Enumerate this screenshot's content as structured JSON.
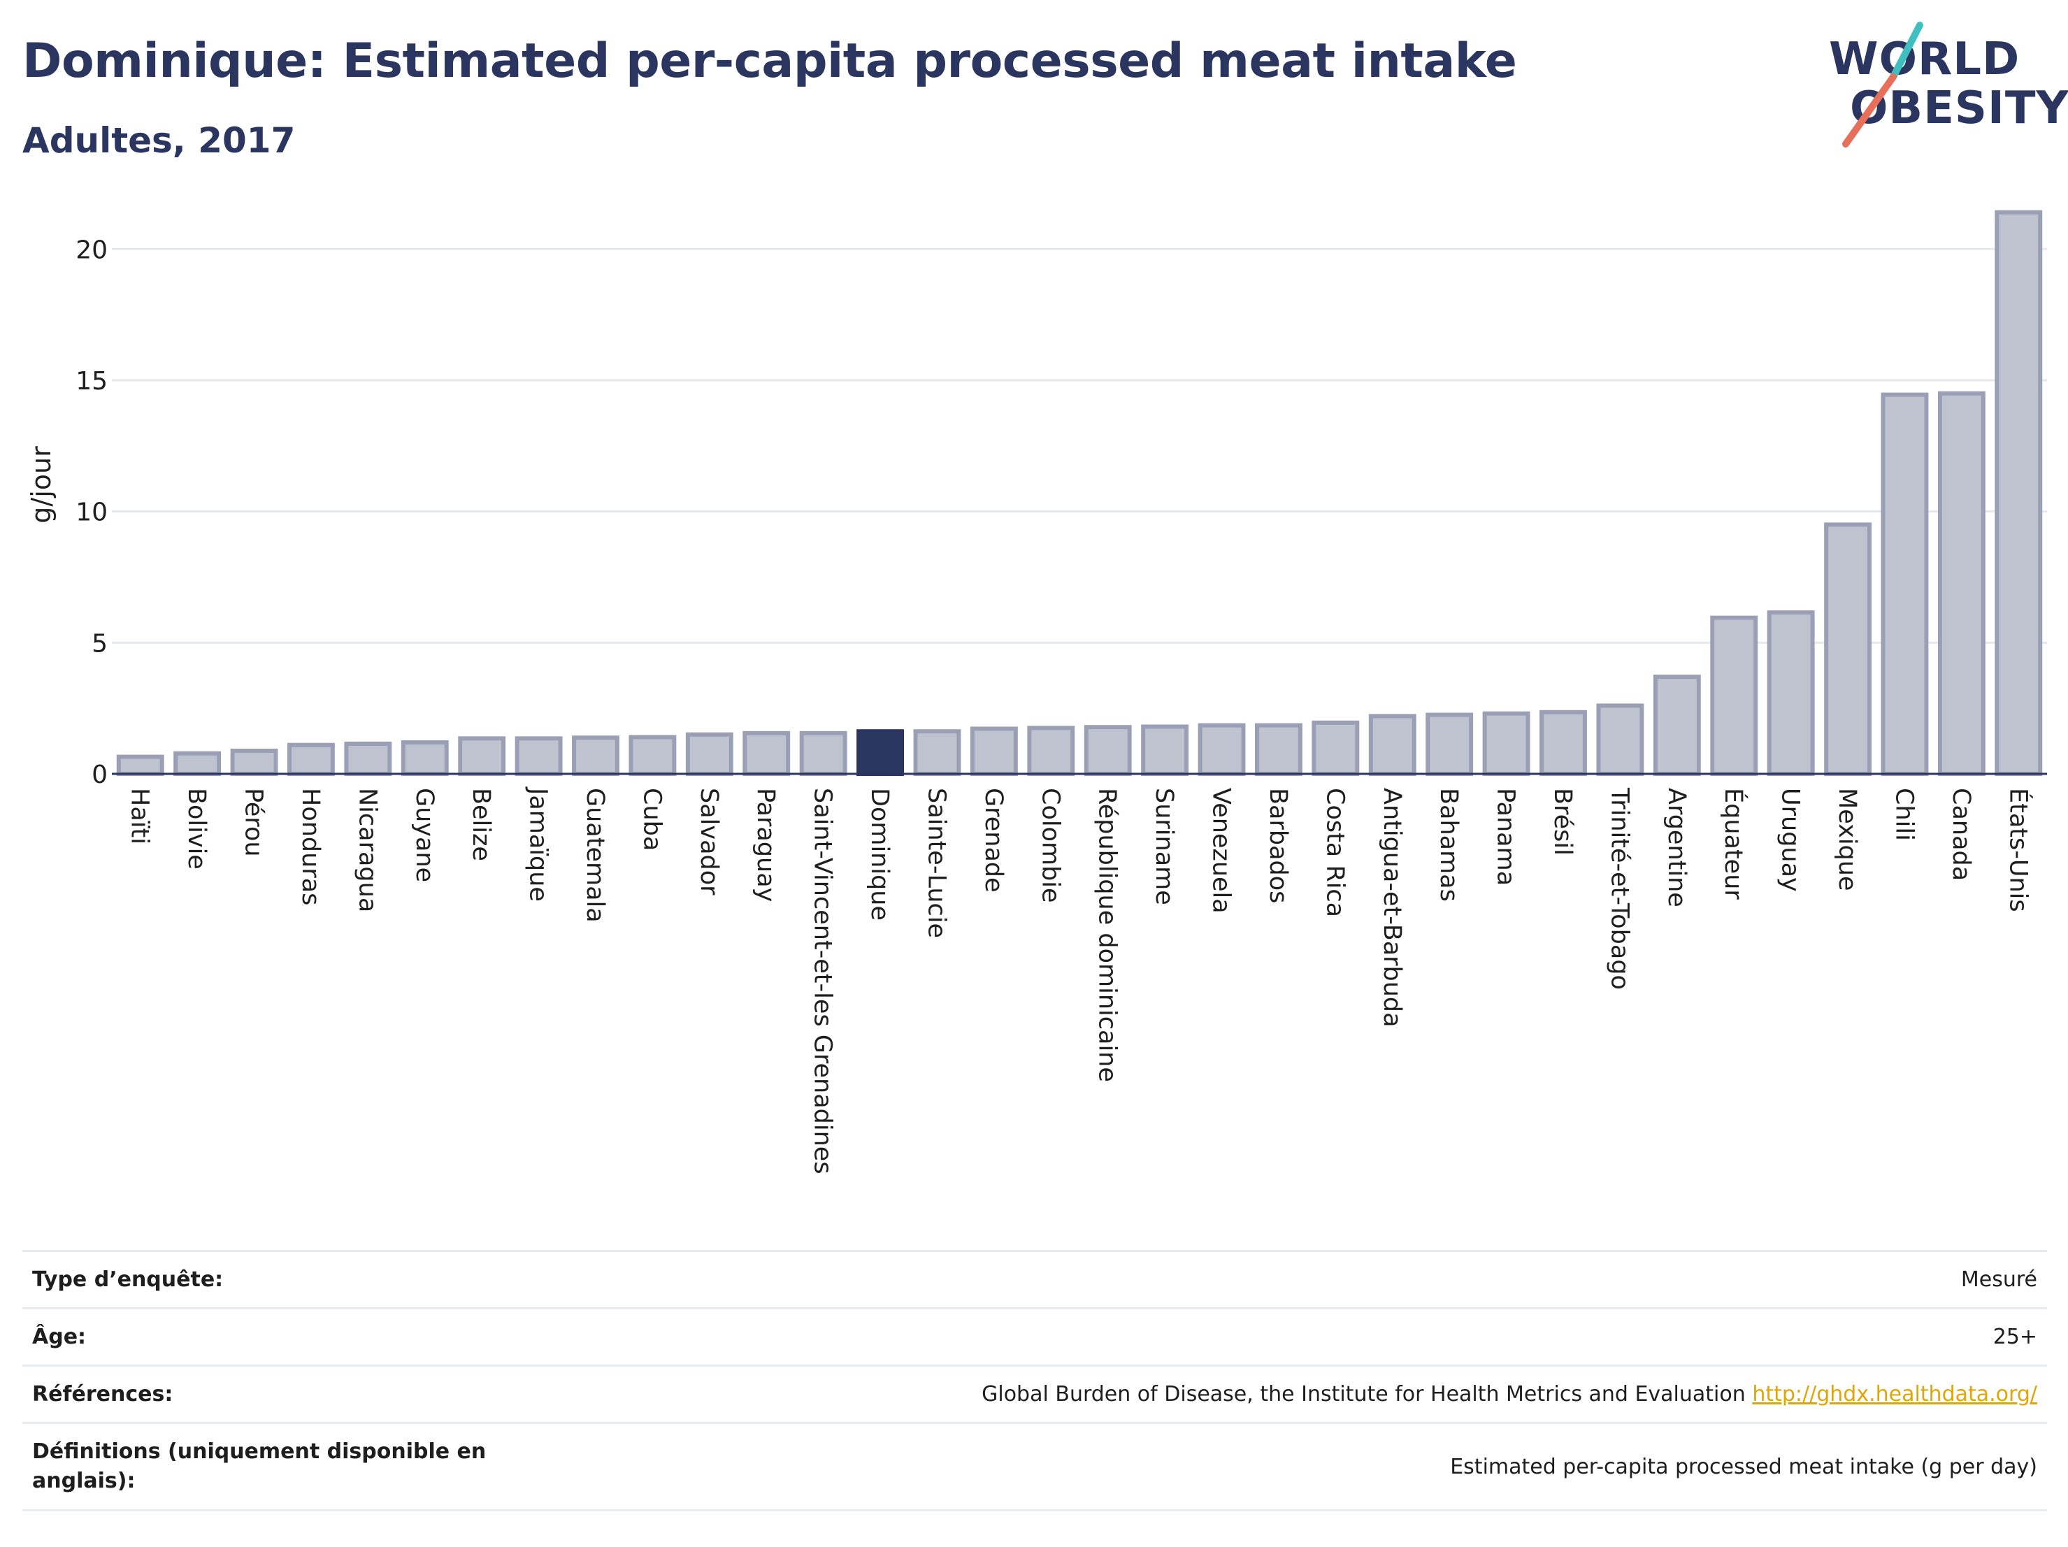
{
  "header": {
    "title": "Dominique: Estimated per-capita processed meat intake",
    "subtitle": "Adultes, 2017"
  },
  "logo": {
    "line1": "WORLD",
    "line2": "OBESITY",
    "accent_teal": "#3fbfbf",
    "accent_coral": "#e8705a"
  },
  "colors": {
    "bar": "#bfc3d0",
    "bar_border": "#9a9fb5",
    "highlight": "#2a3560",
    "grid": "#e5e8ec"
  },
  "chart_data": {
    "type": "bar",
    "ylabel": "g/jour",
    "ylim": [
      0,
      21.5
    ],
    "yticks": [
      0,
      5,
      10,
      15,
      20
    ],
    "highlight": "Dominique",
    "categories": [
      "Haïti",
      "Bolivie",
      "Pérou",
      "Honduras",
      "Nicaragua",
      "Guyane",
      "Belize",
      "Jamaïque",
      "Guatemala",
      "Cuba",
      "Salvador",
      "Paraguay",
      "Saint-Vincent-et-les Grenadines",
      "Dominique",
      "Sainte-Lucie",
      "Grenade",
      "Colombie",
      "République dominicaine",
      "Suriname",
      "Venezuela",
      "Barbados",
      "Costa Rica",
      "Antigua-et-Barbuda",
      "Bahamas",
      "Panama",
      "Brésil",
      "Trinité-et-Tobago",
      "Argentine",
      "Équateur",
      "Uruguay",
      "Mexique",
      "Chili",
      "Canada",
      "États-Unis"
    ],
    "values": [
      0.65,
      0.78,
      0.88,
      1.1,
      1.15,
      1.2,
      1.35,
      1.35,
      1.38,
      1.4,
      1.5,
      1.55,
      1.55,
      1.62,
      1.62,
      1.72,
      1.75,
      1.78,
      1.8,
      1.85,
      1.85,
      1.95,
      2.2,
      2.25,
      2.3,
      2.35,
      2.6,
      3.7,
      5.95,
      6.15,
      9.5,
      14.45,
      14.5,
      21.4
    ]
  },
  "meta": [
    {
      "key": "Type d’enquête:",
      "value": "Mesuré"
    },
    {
      "key": "Âge:",
      "value": "25+"
    },
    {
      "key": "Références:",
      "value": "Global Burden of Disease, the Institute for Health Metrics and Evaluation",
      "link": "http://ghdx.healthdata.org/"
    },
    {
      "key": "Définitions (uniquement disponible en anglais):",
      "value": "Estimated per-capita processed meat intake (g per day)"
    }
  ]
}
